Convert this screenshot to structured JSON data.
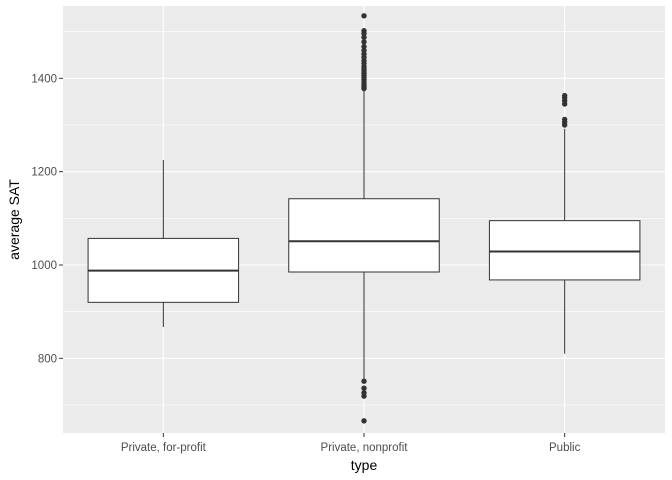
{
  "chart_data": {
    "type": "boxplot",
    "title": "",
    "xlabel": "type",
    "ylabel": "average SAT",
    "categories": [
      "Private, for-profit",
      "Private, nonprofit",
      "Public"
    ],
    "ylim": [
      640,
      1555
    ],
    "yticks": [
      800,
      1000,
      1200,
      1400
    ],
    "grid": true,
    "legend": "none",
    "boxes": [
      {
        "category": "Private, for-profit",
        "whisker_low": 867,
        "q1": 920,
        "median": 988,
        "q3": 1057,
        "whisker_high": 1225,
        "outliers": []
      },
      {
        "category": "Private, nonprofit",
        "whisker_low": 753,
        "q1": 985,
        "median": 1051,
        "q3": 1142,
        "whisker_high": 1376,
        "outliers": [
          666,
          719,
          726,
          736,
          751,
          1378,
          1382,
          1386,
          1391,
          1397,
          1402,
          1406,
          1411,
          1416,
          1420,
          1425,
          1432,
          1438,
          1445,
          1452,
          1460,
          1468,
          1478,
          1488,
          1496,
          1502,
          1534
        ]
      },
      {
        "category": "Public",
        "whisker_low": 810,
        "q1": 968,
        "median": 1029,
        "q3": 1095,
        "whisker_high": 1292,
        "outliers": [
          1300,
          1306,
          1312,
          1345,
          1352,
          1358,
          1363
        ]
      }
    ],
    "colors": {
      "panel": "#ebebeb",
      "grid_major": "#ffffff",
      "box_fill": "#ffffff",
      "box_stroke": "#333333",
      "outlier": "#333333"
    }
  }
}
